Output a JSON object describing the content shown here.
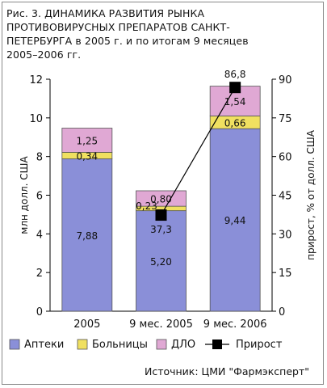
{
  "title_lines": [
    "Рис. 3. ДИНАМИКА РАЗВИТИЯ РЫНКА",
    "ПРОТИВОВИРУСНЫХ ПРЕПАРАТОВ  САНКТ-",
    "ПЕТЕРБУРГА в 2005 г. и по итогам 9 месяцев",
    "2005–2006 гг."
  ],
  "source": "Источник: ЦМИ \"Фармэксперт\"",
  "colors": {
    "apteki": "#8a8fd8",
    "bolnitsy": "#f0e060",
    "dlo": "#e0a8d4",
    "line": "#000000",
    "bar_edge": "#555555"
  },
  "chart_data": {
    "type": "bar",
    "stacked": true,
    "categories": [
      "2005",
      "9 мес. 2005",
      "9 мес. 2006"
    ],
    "series": [
      {
        "name": "Аптеки",
        "values": [
          7.88,
          5.2,
          9.44
        ],
        "labels": [
          "7,88",
          "5,20",
          "9,44"
        ]
      },
      {
        "name": "Больницы",
        "values": [
          0.34,
          0.23,
          0.66
        ],
        "labels": [
          "0,34",
          "0,23",
          "0,66"
        ]
      },
      {
        "name": "ДЛО",
        "values": [
          1.25,
          0.8,
          1.54
        ],
        "labels": [
          "1,25",
          "0,80",
          "1,54"
        ]
      }
    ],
    "growth": {
      "name": "Прирост",
      "x": [
        "9 мес. 2005",
        "9 мес. 2006"
      ],
      "values": [
        37.3,
        86.8
      ],
      "labels": [
        "37,3",
        "86,8"
      ]
    },
    "ylabel": "млн долл. США",
    "y2label": "прирост, % от долл. США",
    "ylim": [
      0,
      12
    ],
    "y2lim": [
      0,
      90
    ],
    "yticks": [
      "0",
      "2",
      "4",
      "6",
      "8",
      "10",
      "12"
    ],
    "y2ticks": [
      "0",
      "15",
      "30",
      "45",
      "60",
      "75",
      "90"
    ],
    "legend_position": "bottom"
  }
}
